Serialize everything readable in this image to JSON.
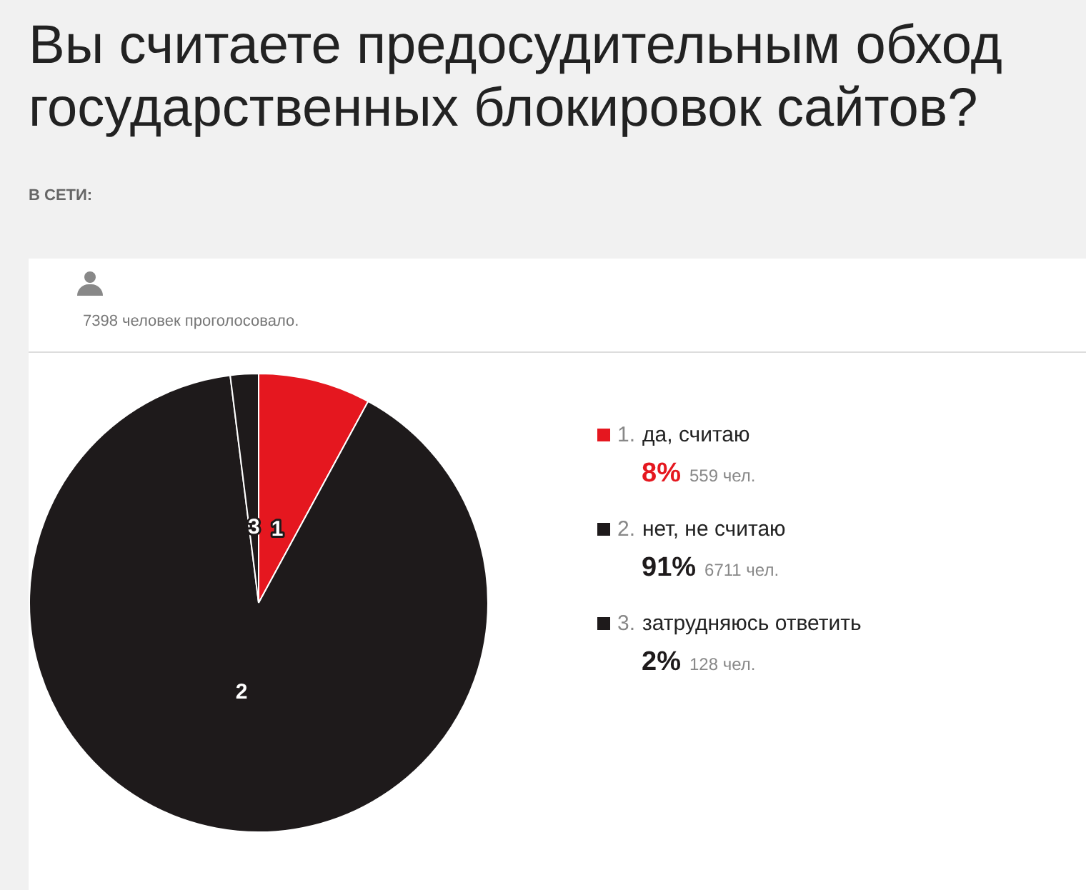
{
  "chart_data": {
    "type": "pie",
    "title": "Вы считаете предосудительным обход государственных блокировок сайтов?",
    "subtitle": "В СЕТИ:",
    "categories": [
      "да, считаю",
      "нет, не считаю",
      "затрудняюсь ответить"
    ],
    "values": [
      8,
      91,
      2
    ],
    "colors": [
      "#e5171f",
      "#1e1a1b",
      "#1e1a1b"
    ],
    "value_labels": [
      "8%",
      "91%",
      "2%"
    ],
    "annotations": [
      "7398 человек проголосовало.",
      "1.",
      "2.",
      "3.",
      "559 чел.",
      "6711 чел.",
      "128 чел.",
      "1",
      "2",
      "3"
    ],
    "legend": "right"
  }
}
